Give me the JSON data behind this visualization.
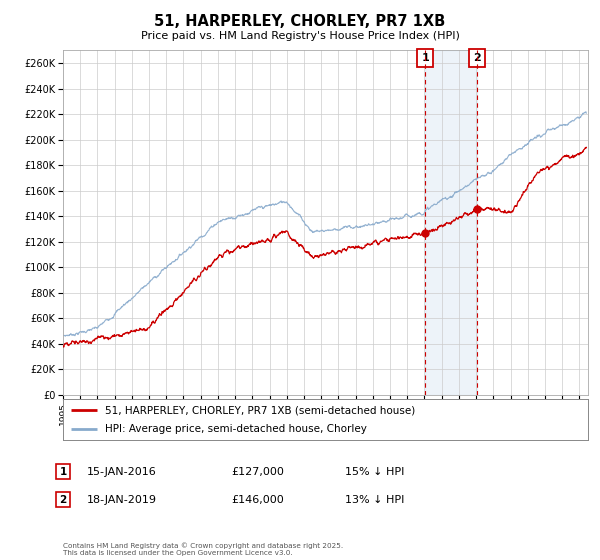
{
  "title": "51, HARPERLEY, CHORLEY, PR7 1XB",
  "subtitle": "Price paid vs. HM Land Registry's House Price Index (HPI)",
  "ylim": [
    0,
    270000
  ],
  "yticks": [
    0,
    20000,
    40000,
    60000,
    80000,
    100000,
    120000,
    140000,
    160000,
    180000,
    200000,
    220000,
    240000,
    260000
  ],
  "xlim_start": 1995.0,
  "xlim_end": 2025.5,
  "legend_label_red": "51, HARPERLEY, CHORLEY, PR7 1XB (semi-detached house)",
  "legend_label_blue": "HPI: Average price, semi-detached house, Chorley",
  "red_color": "#cc0000",
  "blue_color": "#88aacc",
  "marker1_date": 2016.04,
  "marker1_price": 127000,
  "marker2_date": 2019.04,
  "marker2_price": 146000,
  "marker1_text": "15-JAN-2016",
  "marker1_price_text": "£127,000",
  "marker1_hpi_text": "15% ↓ HPI",
  "marker2_text": "18-JAN-2019",
  "marker2_price_text": "£146,000",
  "marker2_hpi_text": "13% ↓ HPI",
  "grid_color": "#cccccc",
  "bg_color": "#ffffff",
  "shade_color": "#ccddf0",
  "footer_text": "Contains HM Land Registry data © Crown copyright and database right 2025.\nThis data is licensed under the Open Government Licence v3.0."
}
